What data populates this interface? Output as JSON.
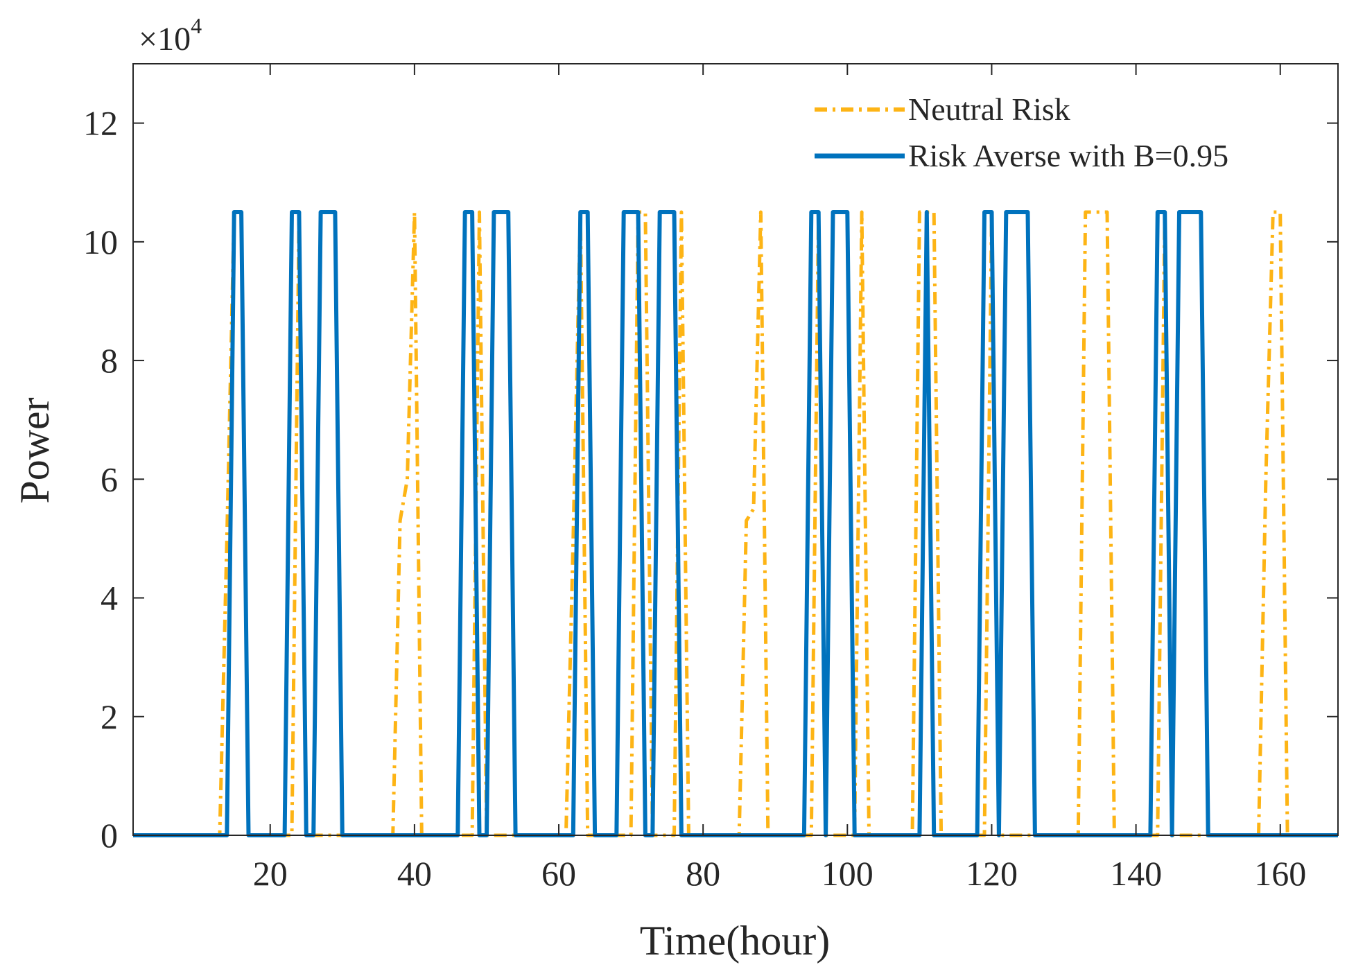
{
  "chart_data": {
    "type": "line",
    "title": "",
    "xlabel": "Time(hour)",
    "ylabel": "Power",
    "exponent_label": "×10",
    "exponent_power": "4",
    "xlim": [
      1,
      168
    ],
    "ylim": [
      0,
      130000
    ],
    "xticks": [
      20,
      40,
      60,
      80,
      100,
      120,
      140,
      160
    ],
    "yticks": [
      0,
      20000,
      40000,
      60000,
      80000,
      100000,
      120000
    ],
    "ytick_labels": [
      "0",
      "2",
      "4",
      "6",
      "8",
      "10",
      "12"
    ],
    "grid": false,
    "legend_position": "top-right",
    "series": [
      {
        "name": "Neutral Risk",
        "color": "#FDB415",
        "style": "dash-dot",
        "points": [
          [
            1,
            0
          ],
          [
            13,
            0
          ],
          [
            14,
            50000
          ],
          [
            15,
            105000
          ],
          [
            16,
            105000
          ],
          [
            17,
            0
          ],
          [
            23,
            0
          ],
          [
            24,
            105000
          ],
          [
            25,
            0
          ],
          [
            37,
            0
          ],
          [
            38,
            53000
          ],
          [
            39,
            60000
          ],
          [
            40,
            105000
          ],
          [
            41,
            0
          ],
          [
            48,
            0
          ],
          [
            49,
            105000
          ],
          [
            50,
            0
          ],
          [
            61,
            0
          ],
          [
            62,
            50000
          ],
          [
            63,
            105000
          ],
          [
            64,
            0
          ],
          [
            70,
            0
          ],
          [
            71,
            105000
          ],
          [
            72,
            105000
          ],
          [
            73,
            0
          ],
          [
            76,
            0
          ],
          [
            77,
            105000
          ],
          [
            78,
            0
          ],
          [
            85,
            0
          ],
          [
            86,
            53000
          ],
          [
            87,
            55000
          ],
          [
            88,
            105000
          ],
          [
            89,
            0
          ],
          [
            95,
            0
          ],
          [
            96,
            105000
          ],
          [
            97,
            0
          ],
          [
            101,
            0
          ],
          [
            102,
            105000
          ],
          [
            103,
            0
          ],
          [
            109,
            0
          ],
          [
            110,
            105000
          ],
          [
            111,
            105000
          ],
          [
            112,
            105000
          ],
          [
            113,
            0
          ],
          [
            119,
            0
          ],
          [
            120,
            105000
          ],
          [
            121,
            0
          ],
          [
            132,
            0
          ],
          [
            133,
            105000
          ],
          [
            134,
            105000
          ],
          [
            135,
            105000
          ],
          [
            136,
            105000
          ],
          [
            137,
            0
          ],
          [
            143,
            0
          ],
          [
            144,
            105000
          ],
          [
            145,
            0
          ],
          [
            157,
            0
          ],
          [
            158,
            60000
          ],
          [
            159,
            105000
          ],
          [
            160,
            105000
          ],
          [
            161,
            0
          ],
          [
            168,
            0
          ]
        ]
      },
      {
        "name": "Risk Averse with B=0.95",
        "color": "#0072BD",
        "style": "solid",
        "points": [
          [
            1,
            0
          ],
          [
            14,
            0
          ],
          [
            15,
            105000
          ],
          [
            16,
            105000
          ],
          [
            17,
            0
          ],
          [
            22,
            0
          ],
          [
            23,
            105000
          ],
          [
            24,
            105000
          ],
          [
            25,
            0
          ],
          [
            26,
            0
          ],
          [
            27,
            105000
          ],
          [
            28,
            105000
          ],
          [
            29,
            105000
          ],
          [
            30,
            0
          ],
          [
            46,
            0
          ],
          [
            47,
            105000
          ],
          [
            48,
            105000
          ],
          [
            49,
            0
          ],
          [
            50,
            0
          ],
          [
            51,
            105000
          ],
          [
            52,
            105000
          ],
          [
            53,
            105000
          ],
          [
            54,
            0
          ],
          [
            62,
            0
          ],
          [
            63,
            105000
          ],
          [
            64,
            105000
          ],
          [
            65,
            0
          ],
          [
            68,
            0
          ],
          [
            69,
            105000
          ],
          [
            70,
            105000
          ],
          [
            71,
            105000
          ],
          [
            72,
            0
          ],
          [
            73,
            0
          ],
          [
            74,
            105000
          ],
          [
            75,
            105000
          ],
          [
            76,
            105000
          ],
          [
            77,
            0
          ],
          [
            94,
            0
          ],
          [
            95,
            105000
          ],
          [
            96,
            105000
          ],
          [
            97,
            0
          ],
          [
            98,
            105000
          ],
          [
            99,
            105000
          ],
          [
            100,
            105000
          ],
          [
            101,
            0
          ],
          [
            110,
            0
          ],
          [
            111,
            105000
          ],
          [
            112,
            0
          ],
          [
            118,
            0
          ],
          [
            119,
            105000
          ],
          [
            120,
            105000
          ],
          [
            121,
            0
          ],
          [
            122,
            105000
          ],
          [
            123,
            105000
          ],
          [
            124,
            105000
          ],
          [
            125,
            105000
          ],
          [
            126,
            0
          ],
          [
            142,
            0
          ],
          [
            143,
            105000
          ],
          [
            144,
            105000
          ],
          [
            145,
            0
          ],
          [
            146,
            105000
          ],
          [
            147,
            105000
          ],
          [
            148,
            105000
          ],
          [
            149,
            105000
          ],
          [
            150,
            0
          ],
          [
            168,
            0
          ]
        ]
      }
    ]
  }
}
